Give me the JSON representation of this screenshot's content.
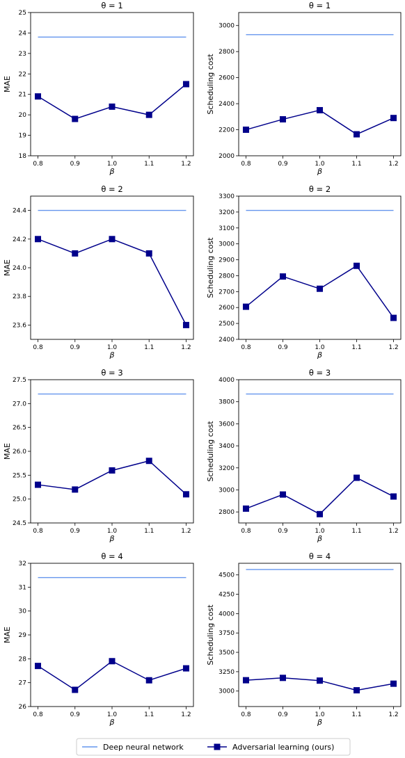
{
  "chart_data": [
    {
      "type": "line",
      "title": "θ = 1",
      "xlabel": "β",
      "ylabel": "MAE",
      "x": [
        0.8,
        0.9,
        1.0,
        1.1,
        1.2
      ],
      "xticks": [
        "0.8",
        "0.9",
        "1.0",
        "1.1",
        "1.2"
      ],
      "ylim": [
        18,
        25
      ],
      "yticks": [
        "18",
        "19",
        "20",
        "21",
        "22",
        "23",
        "24",
        "25"
      ],
      "series": [
        {
          "name": "Deep neural network",
          "values": [
            23.8,
            23.8,
            23.8,
            23.8,
            23.8
          ]
        },
        {
          "name": "Adversarial learning (ours)",
          "values": [
            20.9,
            19.8,
            20.4,
            20.0,
            21.5
          ]
        }
      ]
    },
    {
      "type": "line",
      "title": "θ = 1",
      "xlabel": "β",
      "ylabel": "Scheduling cost",
      "x": [
        0.8,
        0.9,
        1.0,
        1.1,
        1.2
      ],
      "xticks": [
        "0.8",
        "0.9",
        "1.0",
        "1.1",
        "1.2"
      ],
      "ylim": [
        2000,
        3100
      ],
      "yticks": [
        "2000",
        "2200",
        "2400",
        "2600",
        "2800",
        "3000"
      ],
      "series": [
        {
          "name": "Deep neural network",
          "values": [
            2930,
            2930,
            2930,
            2930,
            2930
          ]
        },
        {
          "name": "Adversarial learning (ours)",
          "values": [
            2200,
            2280,
            2350,
            2165,
            2290
          ]
        }
      ]
    },
    {
      "type": "line",
      "title": "θ = 2",
      "xlabel": "β",
      "ylabel": "MAE",
      "x": [
        0.8,
        0.9,
        1.0,
        1.1,
        1.2
      ],
      "xticks": [
        "0.8",
        "0.9",
        "1.0",
        "1.1",
        "1.2"
      ],
      "ylim": [
        23.5,
        24.5
      ],
      "yticks": [
        "23.6",
        "23.8",
        "24.0",
        "24.2",
        "24.4"
      ],
      "series": [
        {
          "name": "Deep neural network",
          "values": [
            24.4,
            24.4,
            24.4,
            24.4,
            24.4
          ]
        },
        {
          "name": "Adversarial learning (ours)",
          "values": [
            24.2,
            24.1,
            24.2,
            24.1,
            23.6
          ]
        }
      ]
    },
    {
      "type": "line",
      "title": "θ = 2",
      "xlabel": "β",
      "ylabel": "Scheduling cost",
      "x": [
        0.8,
        0.9,
        1.0,
        1.1,
        1.2
      ],
      "xticks": [
        "0.8",
        "0.9",
        "1.0",
        "1.1",
        "1.2"
      ],
      "ylim": [
        2400,
        3300
      ],
      "yticks": [
        "2400",
        "2500",
        "2600",
        "2700",
        "2800",
        "2900",
        "3000",
        "3100",
        "3200",
        "3300"
      ],
      "series": [
        {
          "name": "Deep neural network",
          "values": [
            3210,
            3210,
            3210,
            3210,
            3210
          ]
        },
        {
          "name": "Adversarial learning (ours)",
          "values": [
            2605,
            2795,
            2718,
            2862,
            2535
          ]
        }
      ]
    },
    {
      "type": "line",
      "title": "θ = 3",
      "xlabel": "β",
      "ylabel": "MAE",
      "x": [
        0.8,
        0.9,
        1.0,
        1.1,
        1.2
      ],
      "xticks": [
        "0.8",
        "0.9",
        "1.0",
        "1.1",
        "1.2"
      ],
      "ylim": [
        24.5,
        27.5
      ],
      "yticks": [
        "24.5",
        "25.0",
        "25.5",
        "26.0",
        "26.5",
        "27.0",
        "27.5"
      ],
      "series": [
        {
          "name": "Deep neural network",
          "values": [
            27.2,
            27.2,
            27.2,
            27.2,
            27.2
          ]
        },
        {
          "name": "Adversarial learning (ours)",
          "values": [
            25.3,
            25.2,
            25.6,
            25.8,
            25.1
          ]
        }
      ]
    },
    {
      "type": "line",
      "title": "θ = 3",
      "xlabel": "β",
      "ylabel": "Scheduling cost",
      "x": [
        0.8,
        0.9,
        1.0,
        1.1,
        1.2
      ],
      "xticks": [
        "0.8",
        "0.9",
        "1.0",
        "1.1",
        "1.2"
      ],
      "ylim": [
        2700,
        4000
      ],
      "yticks": [
        "2800",
        "3000",
        "3200",
        "3400",
        "3600",
        "3800",
        "4000"
      ],
      "series": [
        {
          "name": "Deep neural network",
          "values": [
            3870,
            3870,
            3870,
            3870,
            3870
          ]
        },
        {
          "name": "Adversarial learning (ours)",
          "values": [
            2830,
            2958,
            2780,
            3110,
            2940
          ]
        }
      ]
    },
    {
      "type": "line",
      "title": "θ = 4",
      "xlabel": "β",
      "ylabel": "MAE",
      "x": [
        0.8,
        0.9,
        1.0,
        1.1,
        1.2
      ],
      "xticks": [
        "0.8",
        "0.9",
        "1.0",
        "1.1",
        "1.2"
      ],
      "ylim": [
        26,
        32
      ],
      "yticks": [
        "26",
        "27",
        "28",
        "29",
        "30",
        "31",
        "32"
      ],
      "series": [
        {
          "name": "Deep neural network",
          "values": [
            31.4,
            31.4,
            31.4,
            31.4,
            31.4
          ]
        },
        {
          "name": "Adversarial learning (ours)",
          "values": [
            27.7,
            26.7,
            27.9,
            27.1,
            27.6
          ]
        }
      ]
    },
    {
      "type": "line",
      "title": "θ = 4",
      "xlabel": "β",
      "ylabel": "Scheduling cost",
      "x": [
        0.8,
        0.9,
        1.0,
        1.1,
        1.2
      ],
      "xticks": [
        "0.8",
        "0.9",
        "1.0",
        "1.1",
        "1.2"
      ],
      "ylim": [
        2800,
        4650
      ],
      "yticks": [
        "3000",
        "3250",
        "3500",
        "3750",
        "4000",
        "4250",
        "4500"
      ],
      "series": [
        {
          "name": "Deep neural network",
          "values": [
            4570,
            4570,
            4570,
            4570,
            4570
          ]
        },
        {
          "name": "Adversarial learning (ours)",
          "values": [
            3140,
            3170,
            3135,
            3010,
            3095
          ]
        }
      ]
    }
  ],
  "legend": {
    "position": "bottom-center",
    "entries": [
      {
        "label": "Deep neural network",
        "style": "line"
      },
      {
        "label": "Adversarial learning (ours)",
        "style": "line-square-marker"
      }
    ]
  },
  "colors": {
    "dnn_line": "#6495ED",
    "adv_line": "#00008B",
    "axis": "#000000"
  }
}
